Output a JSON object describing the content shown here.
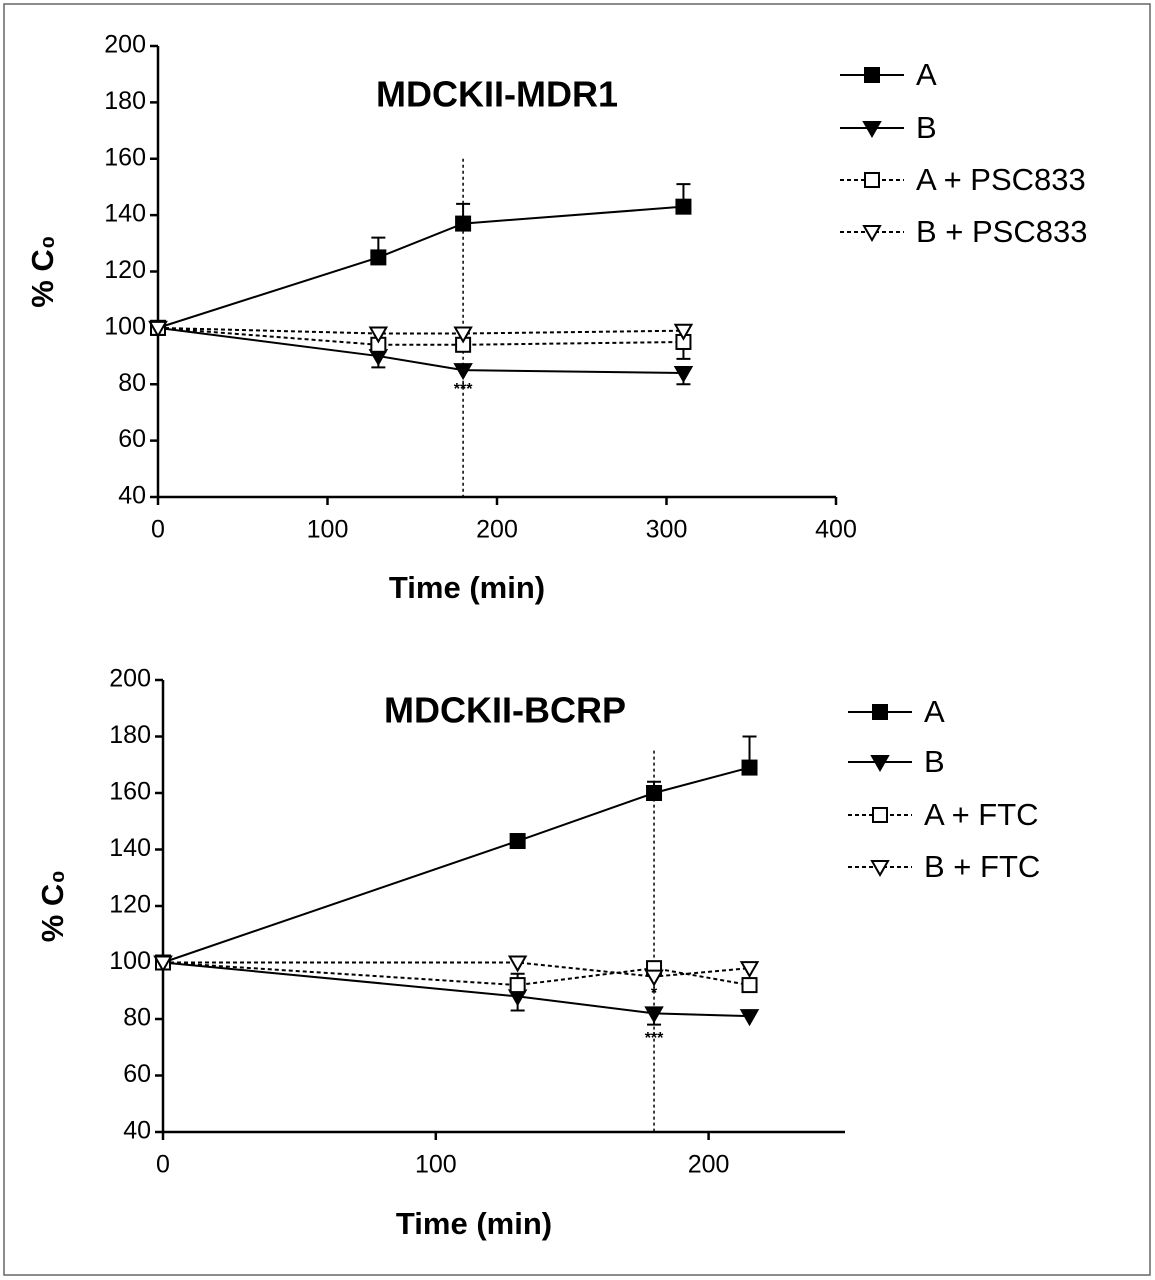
{
  "chart_data": [
    {
      "type": "line",
      "title": "MDCKII-MDR1",
      "xlabel": "Time (min)",
      "ylabel": "% C₀",
      "xlim": [
        0,
        400
      ],
      "xticks": [
        0,
        100,
        200,
        300,
        400
      ],
      "ylim": [
        40,
        200
      ],
      "yticks": [
        40,
        60,
        80,
        100,
        120,
        140,
        160,
        180,
        200
      ],
      "reference_line": {
        "x": 180,
        "y_top": 160
      },
      "annotations": [
        {
          "x": 180,
          "y": 78,
          "text": "***"
        }
      ],
      "series": [
        {
          "name": "A",
          "color": "#000000",
          "marker": "square",
          "filled": true,
          "dashed": false,
          "error_direction": "up",
          "x": [
            0,
            130,
            180,
            310
          ],
          "values": [
            100,
            125,
            137,
            143
          ],
          "errors": [
            0,
            7,
            7,
            8
          ]
        },
        {
          "name": "B",
          "color": "#000000",
          "marker": "triangle",
          "filled": true,
          "dashed": false,
          "error_direction": "down",
          "x": [
            0,
            130,
            180,
            310
          ],
          "values": [
            100,
            90,
            85,
            84
          ],
          "errors": [
            0,
            4,
            0,
            4
          ]
        },
        {
          "name": "A + PSC833",
          "color": "#000000",
          "marker": "square",
          "filled": false,
          "dashed": true,
          "error_direction": "down",
          "x": [
            0,
            130,
            180,
            310
          ],
          "values": [
            100,
            94,
            94,
            95
          ],
          "errors": [
            0,
            2,
            2,
            6
          ]
        },
        {
          "name": "B + PSC833",
          "color": "#000000",
          "marker": "triangle",
          "filled": false,
          "dashed": true,
          "error_direction": "up",
          "x": [
            0,
            130,
            180,
            310
          ],
          "values": [
            100,
            98,
            98,
            99
          ],
          "errors": [
            0,
            0,
            0,
            2
          ]
        }
      ]
    },
    {
      "type": "line",
      "title": "MDCKII-BCRP",
      "xlabel": "Time (min)",
      "ylabel": "% C₀",
      "xlim": [
        0,
        250
      ],
      "xticks": [
        0,
        100,
        200
      ],
      "ylim": [
        40,
        200
      ],
      "yticks": [
        40,
        60,
        80,
        100,
        120,
        140,
        160,
        180,
        200
      ],
      "reference_line": {
        "x": 180,
        "y_top": 175
      },
      "annotations": [
        {
          "x": 180,
          "y": 89,
          "text": "*"
        },
        {
          "x": 180,
          "y": 73,
          "text": "***"
        }
      ],
      "series": [
        {
          "name": "A",
          "color": "#000000",
          "marker": "square",
          "filled": true,
          "dashed": false,
          "error_direction": "up",
          "x": [
            0,
            130,
            180,
            215
          ],
          "values": [
            100,
            143,
            160,
            169
          ],
          "errors": [
            0,
            1,
            4,
            11
          ]
        },
        {
          "name": "B",
          "color": "#000000",
          "marker": "triangle",
          "filled": true,
          "dashed": false,
          "error_direction": "down",
          "x": [
            0,
            130,
            180,
            215
          ],
          "values": [
            100,
            88,
            82,
            81
          ],
          "errors": [
            0,
            5,
            4,
            0
          ]
        },
        {
          "name": "A + FTC",
          "color": "#000000",
          "marker": "square",
          "filled": false,
          "dashed": true,
          "error_direction": "up",
          "x": [
            0,
            130,
            180,
            215
          ],
          "values": [
            100,
            92,
            98,
            92
          ],
          "errors": [
            0,
            4,
            0,
            0
          ]
        },
        {
          "name": "B + FTC",
          "color": "#000000",
          "marker": "triangle",
          "filled": false,
          "dashed": true,
          "error_direction": "up",
          "x": [
            0,
            130,
            180,
            215
          ],
          "values": [
            100,
            100,
            95,
            98
          ],
          "errors": [
            0,
            0,
            0,
            0
          ]
        }
      ]
    }
  ]
}
